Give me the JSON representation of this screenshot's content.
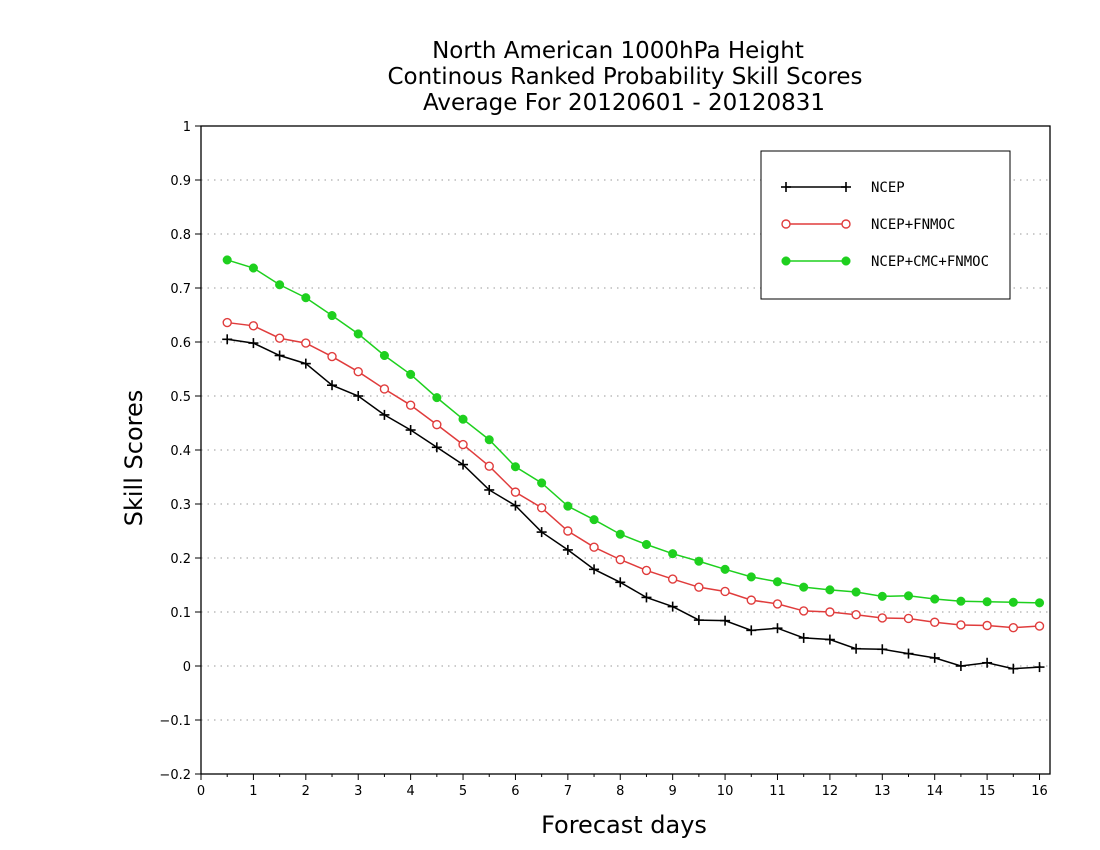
{
  "chart_data": {
    "type": "line",
    "title": [
      "North American 1000hPa Height",
      "Continous Ranked Probability Skill Scores",
      "Average For 20120601 - 20120831"
    ],
    "xlabel": "Forecast days",
    "ylabel": "Skill Scores",
    "xlim": [
      0,
      16.2
    ],
    "ylim": [
      -0.2,
      1
    ],
    "xticks": [
      "0",
      "1",
      "2",
      "3",
      "4",
      "5",
      "6",
      "7",
      "8",
      "9",
      "10",
      "11",
      "12",
      "13",
      "14",
      "15",
      "16"
    ],
    "yticks": [
      "-0.2",
      "-0.1",
      "0",
      "0.1",
      "0.2",
      "0.3",
      "0.4",
      "0.5",
      "0.6",
      "0.7",
      "0.8",
      "0.9",
      "1"
    ],
    "grid": "horizontal dotted",
    "legend_position": "top-right",
    "x": [
      0.5,
      1,
      1.5,
      2,
      2.5,
      3,
      3.5,
      4,
      4.5,
      5,
      5.5,
      6,
      6.5,
      7,
      7.5,
      8,
      8.5,
      9,
      9.5,
      10,
      10.5,
      11,
      11.5,
      12,
      12.5,
      13,
      13.5,
      14,
      14.5,
      15,
      15.5,
      16
    ],
    "series": [
      {
        "name": "NCEP",
        "color": "#000000",
        "marker": "plus",
        "values": [
          0.605,
          0.598,
          0.575,
          0.56,
          0.52,
          0.5,
          0.465,
          0.437,
          0.405,
          0.373,
          0.326,
          0.297,
          0.248,
          0.215,
          0.179,
          0.155,
          0.127,
          0.11,
          0.085,
          0.084,
          0.066,
          0.07,
          0.052,
          0.049,
          0.032,
          0.031,
          0.023,
          0.015,
          0.0,
          0.006,
          -0.005,
          -0.002
        ]
      },
      {
        "name": "NCEP+FNMOC",
        "color": "#e03c3c",
        "marker": "open-circle",
        "values": [
          0.636,
          0.63,
          0.607,
          0.598,
          0.573,
          0.545,
          0.513,
          0.483,
          0.447,
          0.41,
          0.37,
          0.322,
          0.293,
          0.25,
          0.22,
          0.197,
          0.177,
          0.161,
          0.146,
          0.138,
          0.122,
          0.115,
          0.102,
          0.1,
          0.095,
          0.089,
          0.088,
          0.081,
          0.076,
          0.075,
          0.071,
          0.074
        ]
      },
      {
        "name": "NCEP+CMC+FNMOC",
        "color": "#1ed01e",
        "marker": "filled-circle",
        "values": [
          0.752,
          0.737,
          0.706,
          0.682,
          0.649,
          0.615,
          0.575,
          0.54,
          0.497,
          0.457,
          0.419,
          0.369,
          0.339,
          0.296,
          0.271,
          0.244,
          0.225,
          0.208,
          0.194,
          0.179,
          0.165,
          0.156,
          0.146,
          0.141,
          0.137,
          0.129,
          0.13,
          0.124,
          0.12,
          0.119,
          0.118,
          0.117
        ]
      }
    ]
  }
}
